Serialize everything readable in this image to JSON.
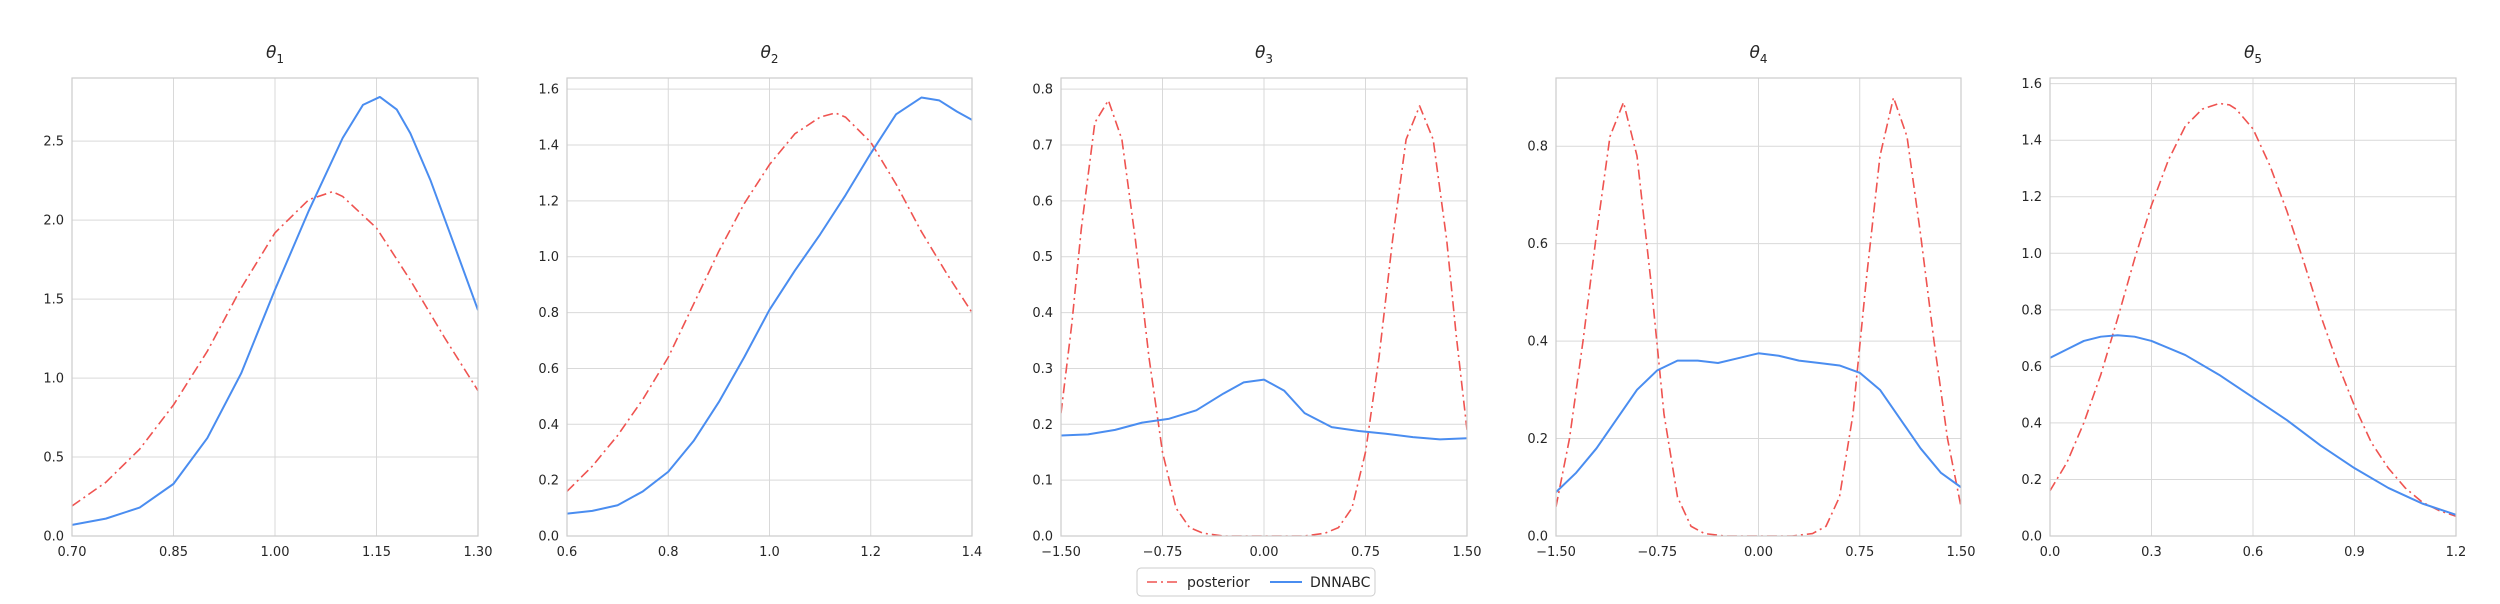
{
  "colors": {
    "posterior": "#ef5350",
    "dnnabc": "#4a8df0",
    "grid": "#d9d9d9",
    "frame": "#cccccc"
  },
  "legend": {
    "location": "bottom-center",
    "entries": [
      {
        "label": "posterior",
        "style": "dash-dot",
        "color": "#ef5350"
      },
      {
        "label": "DNNABC",
        "style": "solid",
        "color": "#4a8df0"
      }
    ]
  },
  "chart_data": [
    {
      "type": "line",
      "title_symbol": "θ",
      "title_sub": "1",
      "grid": true,
      "xlim": [
        0.7,
        1.3
      ],
      "ylim": [
        0.0,
        2.9
      ],
      "xticks": [
        0.7,
        0.85,
        1.0,
        1.15,
        1.3
      ],
      "xtick_labels": [
        "0.70",
        "0.85",
        "1.00",
        "1.15",
        "1.30"
      ],
      "yticks": [
        0.0,
        0.5,
        1.0,
        1.5,
        2.0,
        2.5
      ],
      "ytick_labels": [
        "0.0",
        "0.5",
        "1.0",
        "1.5",
        "2.0",
        "2.5"
      ],
      "series": [
        {
          "name": "posterior",
          "style": "dash-dot",
          "x": [
            0.7,
            0.75,
            0.8,
            0.85,
            0.9,
            0.95,
            1.0,
            1.05,
            1.085,
            1.1,
            1.15,
            1.2,
            1.25,
            1.3
          ],
          "y": [
            0.19,
            0.34,
            0.55,
            0.83,
            1.17,
            1.57,
            1.92,
            2.13,
            2.18,
            2.15,
            1.95,
            1.62,
            1.26,
            0.92
          ]
        },
        {
          "name": "DNNABC",
          "style": "solid",
          "x": [
            0.7,
            0.75,
            0.8,
            0.85,
            0.9,
            0.95,
            1.0,
            1.05,
            1.1,
            1.13,
            1.155,
            1.18,
            1.2,
            1.23,
            1.26,
            1.3
          ],
          "y": [
            0.07,
            0.11,
            0.18,
            0.33,
            0.62,
            1.03,
            1.56,
            2.06,
            2.52,
            2.73,
            2.78,
            2.7,
            2.55,
            2.25,
            1.9,
            1.43
          ]
        }
      ]
    },
    {
      "type": "line",
      "title_symbol": "θ",
      "title_sub": "2",
      "grid": true,
      "xlim": [
        0.6,
        1.4
      ],
      "ylim": [
        0.0,
        1.64
      ],
      "xticks": [
        0.6,
        0.8,
        1.0,
        1.2,
        1.4
      ],
      "xtick_labels": [
        "0.6",
        "0.8",
        "1.0",
        "1.2",
        "1.4"
      ],
      "yticks": [
        0.0,
        0.2,
        0.4,
        0.6,
        0.8,
        1.0,
        1.2,
        1.4,
        1.6
      ],
      "ytick_labels": [
        "0.0",
        "0.2",
        "0.4",
        "0.6",
        "0.8",
        "1.0",
        "1.2",
        "1.4",
        "1.6"
      ],
      "series": [
        {
          "name": "posterior",
          "style": "dash-dot",
          "x": [
            0.6,
            0.65,
            0.7,
            0.75,
            0.8,
            0.85,
            0.9,
            0.95,
            1.0,
            1.05,
            1.1,
            1.13,
            1.15,
            1.2,
            1.25,
            1.3,
            1.35,
            1.4
          ],
          "y": [
            0.16,
            0.25,
            0.36,
            0.49,
            0.64,
            0.83,
            1.02,
            1.19,
            1.33,
            1.44,
            1.5,
            1.515,
            1.5,
            1.41,
            1.26,
            1.09,
            0.94,
            0.8
          ]
        },
        {
          "name": "DNNABC",
          "style": "solid",
          "x": [
            0.6,
            0.65,
            0.7,
            0.75,
            0.8,
            0.85,
            0.9,
            0.95,
            1.0,
            1.05,
            1.1,
            1.15,
            1.2,
            1.25,
            1.3,
            1.335,
            1.37,
            1.4
          ],
          "y": [
            0.08,
            0.09,
            0.11,
            0.16,
            0.23,
            0.34,
            0.48,
            0.64,
            0.81,
            0.95,
            1.08,
            1.22,
            1.37,
            1.51,
            1.57,
            1.56,
            1.52,
            1.49
          ]
        }
      ]
    },
    {
      "type": "line",
      "title_symbol": "θ",
      "title_sub": "3",
      "grid": true,
      "xlim": [
        -1.5,
        1.5
      ],
      "ylim": [
        0.0,
        0.82
      ],
      "xticks": [
        -1.5,
        -0.75,
        0.0,
        0.75,
        1.5
      ],
      "xtick_labels": [
        "−1.50",
        "−0.75",
        "0.00",
        "0.75",
        "1.50"
      ],
      "yticks": [
        0.0,
        0.1,
        0.2,
        0.3,
        0.4,
        0.5,
        0.6,
        0.7,
        0.8
      ],
      "ytick_labels": [
        "0.0",
        "0.1",
        "0.2",
        "0.3",
        "0.4",
        "0.5",
        "0.6",
        "0.7",
        "0.8"
      ],
      "series": [
        {
          "name": "posterior",
          "style": "dash-dot",
          "x": [
            -1.5,
            -1.42,
            -1.35,
            -1.25,
            -1.15,
            -1.05,
            -0.95,
            -0.85,
            -0.75,
            -0.65,
            -0.55,
            -0.45,
            -0.3,
            0.0,
            0.3,
            0.45,
            0.55,
            0.65,
            0.75,
            0.85,
            0.95,
            1.05,
            1.15,
            1.25,
            1.35,
            1.42,
            1.5
          ],
          "y": [
            0.22,
            0.38,
            0.55,
            0.74,
            0.78,
            0.71,
            0.53,
            0.32,
            0.15,
            0.05,
            0.015,
            0.005,
            0.0,
            0.0,
            0.0,
            0.005,
            0.015,
            0.05,
            0.15,
            0.32,
            0.53,
            0.71,
            0.77,
            0.71,
            0.53,
            0.36,
            0.19
          ]
        },
        {
          "name": "DNNABC",
          "style": "solid",
          "x": [
            -1.5,
            -1.3,
            -1.1,
            -0.9,
            -0.7,
            -0.5,
            -0.3,
            -0.15,
            0.0,
            0.15,
            0.3,
            0.5,
            0.7,
            0.9,
            1.1,
            1.3,
            1.5
          ],
          "y": [
            0.18,
            0.182,
            0.19,
            0.203,
            0.21,
            0.225,
            0.255,
            0.275,
            0.28,
            0.26,
            0.22,
            0.195,
            0.188,
            0.183,
            0.177,
            0.173,
            0.175
          ]
        }
      ]
    },
    {
      "type": "line",
      "title_symbol": "θ",
      "title_sub": "4",
      "grid": true,
      "xlim": [
        -1.5,
        1.5
      ],
      "ylim": [
        0.0,
        0.94
      ],
      "xticks": [
        -1.5,
        -0.75,
        0.0,
        0.75,
        1.5
      ],
      "xtick_labels": [
        "−1.50",
        "−0.75",
        "0.00",
        "0.75",
        "1.50"
      ],
      "yticks": [
        0.0,
        0.2,
        0.4,
        0.6,
        0.8
      ],
      "ytick_labels": [
        "0.0",
        "0.2",
        "0.4",
        "0.6",
        "0.8"
      ],
      "series": [
        {
          "name": "posterior",
          "style": "dash-dot",
          "x": [
            -1.5,
            -1.4,
            -1.3,
            -1.2,
            -1.1,
            -1.0,
            -0.9,
            -0.8,
            -0.7,
            -0.6,
            -0.5,
            -0.4,
            -0.25,
            0.0,
            0.25,
            0.4,
            0.5,
            0.6,
            0.7,
            0.8,
            0.9,
            1.0,
            1.1,
            1.2,
            1.3,
            1.4,
            1.5
          ],
          "y": [
            0.06,
            0.2,
            0.4,
            0.62,
            0.82,
            0.89,
            0.78,
            0.53,
            0.25,
            0.08,
            0.02,
            0.005,
            0.0,
            0.0,
            0.0,
            0.005,
            0.02,
            0.08,
            0.25,
            0.53,
            0.78,
            0.9,
            0.82,
            0.62,
            0.4,
            0.2,
            0.06
          ]
        },
        {
          "name": "DNNABC",
          "style": "solid",
          "x": [
            -1.5,
            -1.35,
            -1.2,
            -1.05,
            -0.9,
            -0.75,
            -0.6,
            -0.45,
            -0.3,
            -0.15,
            0.0,
            0.15,
            0.3,
            0.45,
            0.6,
            0.75,
            0.9,
            1.05,
            1.2,
            1.35,
            1.5
          ],
          "y": [
            0.09,
            0.13,
            0.18,
            0.24,
            0.3,
            0.34,
            0.36,
            0.36,
            0.355,
            0.365,
            0.375,
            0.37,
            0.36,
            0.355,
            0.35,
            0.335,
            0.3,
            0.24,
            0.18,
            0.13,
            0.1
          ]
        }
      ]
    },
    {
      "type": "line",
      "title_symbol": "θ",
      "title_sub": "5",
      "grid": true,
      "xlim": [
        0.0,
        1.2
      ],
      "ylim": [
        0.0,
        1.62
      ],
      "xticks": [
        0.0,
        0.3,
        0.6,
        0.9,
        1.2
      ],
      "xtick_labels": [
        "0.0",
        "0.3",
        "0.6",
        "0.9",
        "1.2"
      ],
      "yticks": [
        0.0,
        0.2,
        0.4,
        0.6,
        0.8,
        1.0,
        1.2,
        1.4,
        1.6
      ],
      "ytick_labels": [
        "0.0",
        "0.2",
        "0.4",
        "0.6",
        "0.8",
        "1.0",
        "1.2",
        "1.4",
        "1.6"
      ],
      "series": [
        {
          "name": "posterior",
          "style": "dash-dot",
          "x": [
            0.0,
            0.05,
            0.1,
            0.15,
            0.2,
            0.25,
            0.3,
            0.35,
            0.4,
            0.45,
            0.5,
            0.53,
            0.55,
            0.6,
            0.65,
            0.7,
            0.75,
            0.8,
            0.85,
            0.9,
            0.95,
            1.0,
            1.05,
            1.1,
            1.15,
            1.2
          ],
          "y": [
            0.16,
            0.26,
            0.4,
            0.57,
            0.77,
            0.98,
            1.17,
            1.33,
            1.45,
            1.51,
            1.53,
            1.525,
            1.51,
            1.44,
            1.31,
            1.15,
            0.97,
            0.78,
            0.61,
            0.46,
            0.33,
            0.24,
            0.17,
            0.12,
            0.09,
            0.07
          ]
        },
        {
          "name": "DNNABC",
          "style": "solid",
          "x": [
            0.0,
            0.05,
            0.1,
            0.15,
            0.2,
            0.25,
            0.3,
            0.4,
            0.5,
            0.6,
            0.7,
            0.8,
            0.9,
            1.0,
            1.1,
            1.2
          ],
          "y": [
            0.63,
            0.66,
            0.69,
            0.705,
            0.71,
            0.705,
            0.69,
            0.64,
            0.57,
            0.49,
            0.41,
            0.32,
            0.24,
            0.17,
            0.115,
            0.075
          ]
        }
      ]
    }
  ]
}
